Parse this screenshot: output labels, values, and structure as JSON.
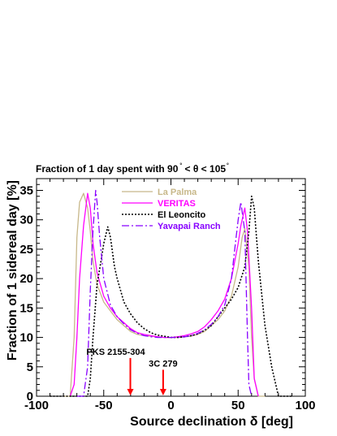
{
  "chart_data": {
    "type": "line",
    "title": "Fraction of 1 day spent with 90° < θ < 105°",
    "title_parts": {
      "prefix": "Fraction of 1 day spent with 90",
      "mid": " < θ < 105",
      "degree": "°"
    },
    "xlabel": "Source declination δ [deg]",
    "ylabel": "Fraction of 1 sidereal day [%]",
    "xlim": [
      -100,
      100
    ],
    "ylim": [
      0,
      37
    ],
    "xticks": [
      -100,
      -50,
      0,
      50,
      100
    ],
    "yticks": [
      0,
      5,
      10,
      15,
      20,
      25,
      30,
      35
    ],
    "grid": false,
    "legend_position": "top-right",
    "series": [
      {
        "name": "La Palma",
        "color": "#c8b88a",
        "dash": "solid",
        "x": [
          -80,
          -75,
          -72,
          -70,
          -68,
          -65,
          -62,
          -60,
          -58,
          -55,
          -50,
          -45,
          -40,
          -35,
          -30,
          -25,
          -20,
          -15,
          -10,
          -5,
          0,
          5,
          10,
          15,
          20,
          25,
          30,
          35,
          40,
          45,
          50,
          53,
          55,
          58,
          60,
          62,
          65,
          68,
          70
        ],
        "y": [
          0,
          0,
          10,
          27,
          33,
          34.5,
          32,
          28,
          23,
          19,
          16,
          14.5,
          13,
          12,
          11,
          10.5,
          10.3,
          10.2,
          10.1,
          10.0,
          10.0,
          10.0,
          10.1,
          10.2,
          10.5,
          11,
          12,
          13,
          14.5,
          17,
          22,
          27,
          28.5,
          22,
          10,
          3,
          0,
          0,
          0
        ]
      },
      {
        "name": "VERITAS",
        "color": "#ff00ff",
        "dash": "solid",
        "x": [
          -75,
          -72,
          -70,
          -68,
          -65,
          -62,
          -60,
          -58,
          -55,
          -50,
          -45,
          -40,
          -35,
          -30,
          -25,
          -20,
          -15,
          -10,
          -5,
          0,
          5,
          10,
          15,
          20,
          25,
          30,
          35,
          40,
          45,
          50,
          52,
          55,
          57,
          60,
          62,
          65
        ],
        "y": [
          0,
          2,
          10,
          20,
          29,
          34.5,
          32,
          26,
          21,
          17,
          15,
          13.5,
          12.5,
          11.5,
          10.8,
          10.5,
          10.3,
          10.1,
          10.0,
          10.0,
          10.1,
          10.3,
          10.6,
          11,
          11.8,
          13,
          14.5,
          16.5,
          20,
          26,
          29,
          32,
          28,
          15,
          3,
          0
        ]
      },
      {
        "name": "El Leoncito",
        "color": "#000000",
        "dash": "dotted",
        "x": [
          -90,
          -62,
          -60,
          -58,
          -55,
          -52,
          -50,
          -47,
          -45,
          -42,
          -40,
          -35,
          -30,
          -25,
          -20,
          -15,
          -10,
          -5,
          0,
          5,
          10,
          15,
          20,
          25,
          30,
          35,
          40,
          45,
          50,
          55,
          58,
          60,
          62,
          65,
          70,
          75,
          80,
          90
        ],
        "y": [
          0,
          0,
          3,
          10,
          19,
          23,
          26,
          28.8,
          27,
          22,
          20,
          16,
          14,
          12.5,
          11.5,
          10.8,
          10.4,
          10.2,
          10.0,
          10.0,
          10.1,
          10.3,
          10.6,
          11.2,
          12,
          13.5,
          15,
          16.5,
          18.5,
          22,
          28,
          34,
          32,
          23,
          12,
          5,
          0,
          0
        ]
      },
      {
        "name": "Yavapai Ranch",
        "color": "#8800ff",
        "dash": "dashdot",
        "x": [
          -70,
          -65,
          -62,
          -60,
          -58,
          -56,
          -55,
          -53,
          -50,
          -45,
          -40,
          -35,
          -30,
          -25,
          -20,
          -15,
          -10,
          -5,
          0,
          5,
          10,
          15,
          20,
          25,
          30,
          35,
          40,
          45,
          48,
          50,
          52,
          55,
          57,
          58,
          60
        ],
        "y": [
          0,
          0,
          5,
          18,
          28,
          35,
          33,
          27,
          20,
          15.5,
          13.5,
          12.3,
          11.3,
          10.7,
          10.3,
          10.1,
          10.0,
          10.0,
          10.0,
          10.0,
          10.1,
          10.3,
          10.7,
          11.3,
          12.2,
          13.5,
          15.5,
          20,
          26,
          30,
          33,
          28,
          10,
          2,
          0
        ]
      }
    ],
    "annotations": [
      {
        "label": "PKS 2155-304",
        "x": -30.2,
        "arrow_top": 6.5
      },
      {
        "label": "3C 279",
        "x": -5.8,
        "arrow_top": 4.5
      }
    ]
  }
}
